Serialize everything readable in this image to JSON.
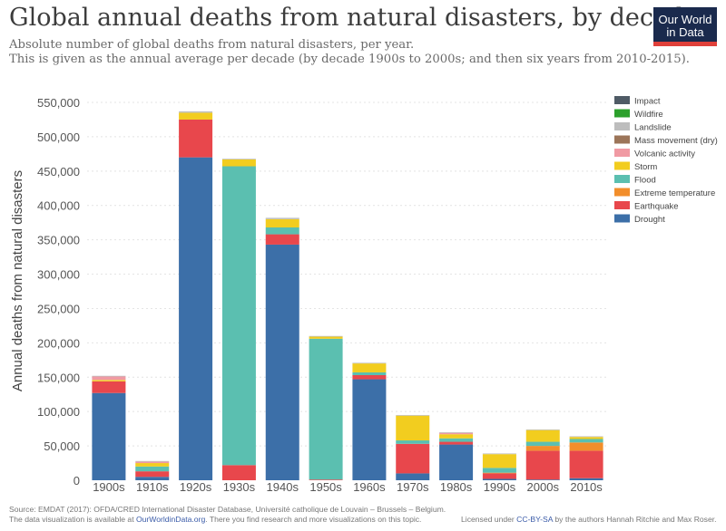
{
  "title": "Global annual deaths from natural disasters, by decade",
  "subtitle_line1": "Absolute number of global deaths from natural disasters, per year.",
  "subtitle_line2": "This is given as the annual average per decade (by decade 1900s to 2000s; and then six years from 2010-2015).",
  "logo": {
    "line1": "Our World",
    "line2": "in Data"
  },
  "footer": {
    "source": "Source: EMDAT (2017): OFDA/CRED International Disaster Database, Université catholique de Louvain – Brussels – Belgium.",
    "viz_prefix": "The data visualization is available at ",
    "viz_link": "OurWorldinData.org",
    "viz_suffix": ". There you find research and more visualizations on this topic.",
    "license_prefix": "Licensed under ",
    "license_link": "CC-BY-SA",
    "license_suffix": " by the authors Hannah Ritchie and Max Roser."
  },
  "chart_data": {
    "type": "bar",
    "stacked": true,
    "ylabel": "Annual deaths from natural disasters",
    "ylim": [
      0,
      550000
    ],
    "yticks": [
      0,
      50000,
      100000,
      150000,
      200000,
      250000,
      300000,
      350000,
      400000,
      450000,
      500000,
      550000
    ],
    "ytick_labels": [
      "0",
      "50,000",
      "100,000",
      "150,000",
      "200,000",
      "250,000",
      "300,000",
      "350,000",
      "400,000",
      "450,000",
      "500,000",
      "550,000"
    ],
    "grid": true,
    "legend_position": "top-right",
    "categories": [
      "1900s",
      "1910s",
      "1920s",
      "1930s",
      "1940s",
      "1950s",
      "1960s",
      "1970s",
      "1980s",
      "1990s",
      "2000s",
      "2010s"
    ],
    "series": [
      {
        "name": "Drought",
        "color": "#3c6fa8",
        "values": [
          127000,
          5000,
          470000,
          0,
          343000,
          0,
          147000,
          10000,
          52000,
          2000,
          1000,
          3000
        ]
      },
      {
        "name": "Earthquake",
        "color": "#e8474c",
        "values": [
          17000,
          8000,
          55000,
          22000,
          15000,
          1000,
          6000,
          43000,
          4000,
          8000,
          42000,
          40000
        ]
      },
      {
        "name": "Extreme temperature",
        "color": "#f28e2b",
        "values": [
          0,
          0,
          0,
          0,
          0,
          0,
          0,
          0,
          0,
          1000,
          7000,
          12000
        ]
      },
      {
        "name": "Flood",
        "color": "#5bbfb0",
        "values": [
          0,
          7000,
          0,
          435000,
          10000,
          205000,
          4000,
          5000,
          5000,
          7000,
          6000,
          5000
        ]
      },
      {
        "name": "Storm",
        "color": "#f2cd1f",
        "values": [
          2000,
          5000,
          10000,
          10000,
          12000,
          3000,
          13000,
          36000,
          6000,
          20000,
          17000,
          3000
        ]
      },
      {
        "name": "Volcanic activity",
        "color": "#f09aa3",
        "values": [
          5000,
          2000,
          0,
          0,
          0,
          0,
          0,
          0,
          2000,
          0,
          0,
          0
        ]
      },
      {
        "name": "Mass movement (dry)",
        "color": "#9c7559",
        "values": [
          0,
          0,
          0,
          0,
          0,
          0,
          0,
          0,
          0,
          0,
          0,
          0
        ]
      },
      {
        "name": "Landslide",
        "color": "#bdbdbd",
        "values": [
          1000,
          1000,
          2000,
          1000,
          2000,
          1000,
          1000,
          1000,
          1000,
          1000,
          1000,
          1000
        ]
      },
      {
        "name": "Wildfire",
        "color": "#2ca02c",
        "values": [
          0,
          0,
          0,
          0,
          0,
          0,
          0,
          0,
          0,
          0,
          0,
          0
        ]
      },
      {
        "name": "Impact",
        "color": "#4f5b66",
        "values": [
          0,
          0,
          0,
          0,
          0,
          0,
          0,
          0,
          0,
          0,
          0,
          0
        ]
      }
    ]
  }
}
